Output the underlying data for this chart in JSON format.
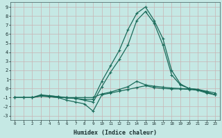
{
  "xlabel": "Humidex (Indice chaleur)",
  "bg_color": "#c5e8e4",
  "grid_color": "#c8b4b4",
  "line_color": "#1a6b5a",
  "xlim": [
    -0.5,
    23.5
  ],
  "ylim": [
    -3.5,
    9.5
  ],
  "xticks": [
    0,
    1,
    2,
    3,
    4,
    5,
    6,
    7,
    8,
    9,
    10,
    11,
    12,
    13,
    14,
    15,
    16,
    17,
    18,
    19,
    20,
    21,
    22,
    23
  ],
  "yticks": [
    -3,
    -2,
    -1,
    0,
    1,
    2,
    3,
    4,
    5,
    6,
    7,
    8,
    9
  ],
  "line1_x": [
    0,
    1,
    2,
    3,
    4,
    5,
    6,
    7,
    8,
    9,
    10,
    11,
    12,
    13,
    14,
    15,
    16,
    17,
    18,
    19,
    20,
    21,
    22,
    23
  ],
  "line1_y": [
    -1.0,
    -1.0,
    -1.0,
    -0.8,
    -0.9,
    -1.0,
    -1.3,
    -1.5,
    -1.7,
    -2.5,
    -0.7,
    -0.5,
    -0.3,
    -0.1,
    0.1,
    0.3,
    0.1,
    0.0,
    -0.05,
    -0.05,
    -0.1,
    -0.2,
    -0.5,
    -0.7
  ],
  "line2_x": [
    0,
    1,
    2,
    3,
    4,
    5,
    6,
    7,
    8,
    9,
    10,
    11,
    12,
    13,
    14,
    15,
    16,
    17,
    18,
    19,
    20,
    21,
    22,
    23
  ],
  "line2_y": [
    -1.0,
    -1.0,
    -1.0,
    -0.85,
    -0.9,
    -1.0,
    -1.0,
    -1.0,
    -1.0,
    -1.0,
    -0.6,
    -0.4,
    -0.1,
    0.2,
    0.8,
    0.4,
    0.25,
    0.15,
    0.05,
    0.0,
    -0.05,
    -0.1,
    -0.3,
    -0.5
  ],
  "line3_x": [
    0,
    1,
    2,
    3,
    4,
    5,
    6,
    7,
    8,
    9,
    10,
    11,
    12,
    13,
    14,
    15,
    16,
    17,
    18,
    19,
    20,
    21,
    22,
    23
  ],
  "line3_y": [
    -1.0,
    -1.0,
    -1.0,
    -0.8,
    -0.8,
    -0.9,
    -1.0,
    -1.1,
    -1.3,
    -1.5,
    0.2,
    1.8,
    3.2,
    4.8,
    7.5,
    8.5,
    7.2,
    4.8,
    1.5,
    0.4,
    0.0,
    -0.1,
    -0.4,
    -0.7
  ],
  "line4_x": [
    0,
    1,
    2,
    3,
    4,
    5,
    6,
    7,
    8,
    9,
    10,
    11,
    12,
    13,
    14,
    15,
    16,
    17,
    18,
    19,
    20,
    21,
    22,
    23
  ],
  "line4_y": [
    -1.0,
    -1.0,
    -1.0,
    -0.7,
    -0.8,
    -0.9,
    -1.05,
    -1.1,
    -1.2,
    -1.2,
    0.8,
    2.5,
    4.2,
    6.5,
    8.3,
    9.0,
    7.5,
    5.5,
    2.0,
    0.5,
    0.0,
    -0.15,
    -0.4,
    -0.7
  ]
}
